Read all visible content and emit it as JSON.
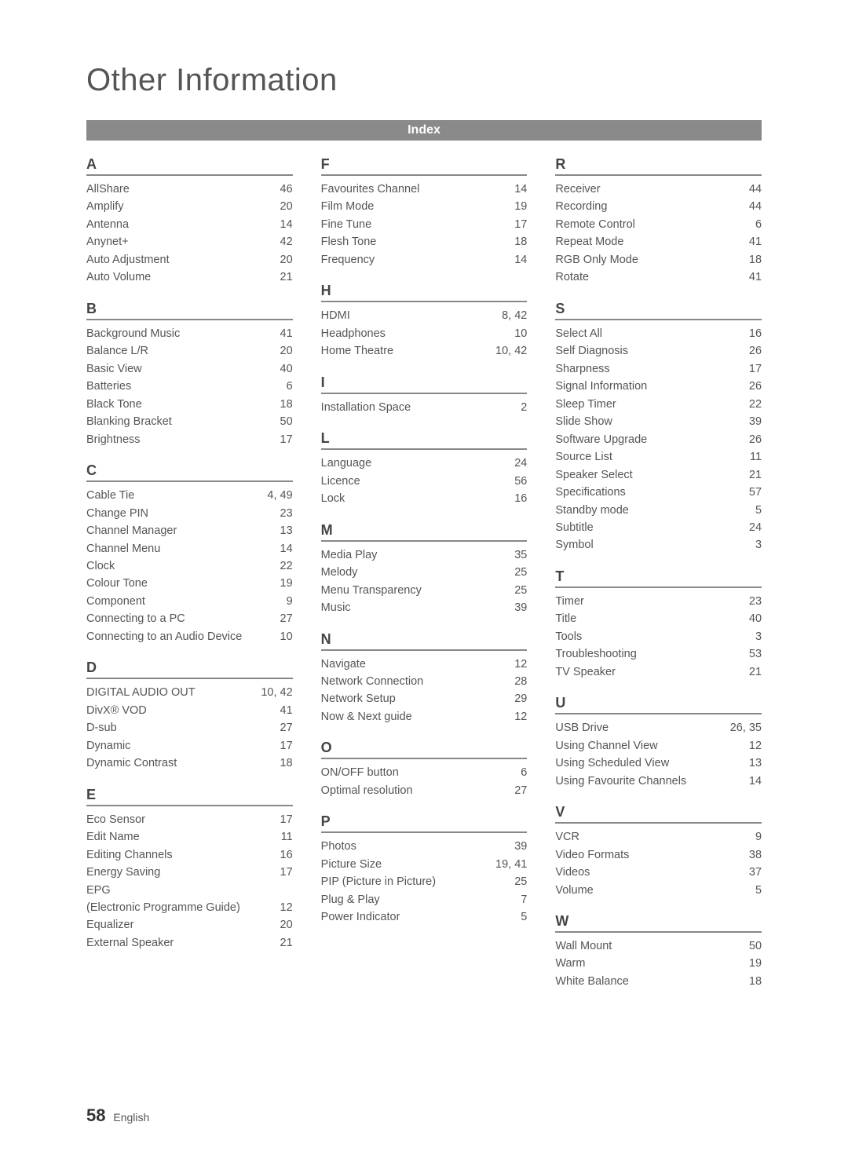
{
  "page_title": "Other Information",
  "index_label": "Index",
  "footer": {
    "number": "58",
    "lang": "English"
  },
  "columns": [
    [
      {
        "letter": "A",
        "entries": [
          {
            "term": "AllShare",
            "page": "46"
          },
          {
            "term": "Amplify",
            "page": "20"
          },
          {
            "term": "Antenna",
            "page": "14"
          },
          {
            "term": "Anynet+",
            "page": "42"
          },
          {
            "term": "Auto Adjustment",
            "page": "20"
          },
          {
            "term": "Auto Volume",
            "page": "21"
          }
        ]
      },
      {
        "letter": "B",
        "entries": [
          {
            "term": "Background Music",
            "page": "41"
          },
          {
            "term": "Balance  L/R",
            "page": "20"
          },
          {
            "term": "Basic View",
            "page": "40"
          },
          {
            "term": "Batteries",
            "page": "6"
          },
          {
            "term": "Black Tone",
            "page": "18"
          },
          {
            "term": "Blanking Bracket",
            "page": "50"
          },
          {
            "term": "Brightness",
            "page": "17"
          }
        ]
      },
      {
        "letter": "C",
        "entries": [
          {
            "term": "Cable Tie",
            "page": "4, 49"
          },
          {
            "term": "Change PIN",
            "page": "23"
          },
          {
            "term": "Channel Manager",
            "page": "13"
          },
          {
            "term": "Channel Menu",
            "page": "14"
          },
          {
            "term": "Clock",
            "page": "22"
          },
          {
            "term": "Colour Tone",
            "page": "19"
          },
          {
            "term": "Component",
            "page": "9"
          },
          {
            "term": "Connecting to a PC",
            "page": "27"
          },
          {
            "term": "Connecting to an Audio Device",
            "page": "10"
          }
        ]
      },
      {
        "letter": "D",
        "entries": [
          {
            "term": "DIGITAL AUDIO OUT",
            "page": "10, 42"
          },
          {
            "term": "DivX® VOD",
            "page": "41"
          },
          {
            "term": "D-sub",
            "page": "27"
          },
          {
            "term": "Dynamic",
            "page": "17"
          },
          {
            "term": "Dynamic Contrast",
            "page": "18"
          }
        ]
      },
      {
        "letter": "E",
        "entries": [
          {
            "term": "Eco Sensor",
            "page": "17"
          },
          {
            "term": "Edit Name",
            "page": "11"
          },
          {
            "term": "Editing Channels",
            "page": "16"
          },
          {
            "term": "Energy Saving",
            "page": "17"
          },
          {
            "term": "EPG",
            "page": ""
          },
          {
            "term": "(Electronic Programme Guide)",
            "page": "12"
          },
          {
            "term": "Equalizer",
            "page": "20"
          },
          {
            "term": "External Speaker",
            "page": "21"
          }
        ]
      }
    ],
    [
      {
        "letter": "F",
        "entries": [
          {
            "term": "Favourites Channel",
            "page": "14"
          },
          {
            "term": "Film Mode",
            "page": "19"
          },
          {
            "term": "Fine Tune",
            "page": "17"
          },
          {
            "term": "Flesh Tone",
            "page": "18"
          },
          {
            "term": "Frequency",
            "page": "14"
          }
        ]
      },
      {
        "letter": "H",
        "entries": [
          {
            "term": "HDMI",
            "page": "8, 42"
          },
          {
            "term": "Headphones",
            "page": "10"
          },
          {
            "term": "Home Theatre",
            "page": "10, 42"
          }
        ]
      },
      {
        "letter": "I",
        "entries": [
          {
            "term": "Installation Space",
            "page": "2"
          }
        ]
      },
      {
        "letter": "L",
        "entries": [
          {
            "term": "Language",
            "page": "24"
          },
          {
            "term": "Licence",
            "page": "56"
          },
          {
            "term": "Lock",
            "page": "16"
          }
        ]
      },
      {
        "letter": "M",
        "entries": [
          {
            "term": "Media Play",
            "page": "35"
          },
          {
            "term": "Melody",
            "page": "25"
          },
          {
            "term": "Menu Transparency",
            "page": "25"
          },
          {
            "term": "Music",
            "page": "39"
          }
        ]
      },
      {
        "letter": "N",
        "entries": [
          {
            "term": "Navigate",
            "page": "12"
          },
          {
            "term": "Network Connection",
            "page": "28"
          },
          {
            "term": "Network Setup",
            "page": "29"
          },
          {
            "term": "Now & Next guide",
            "page": "12"
          }
        ]
      },
      {
        "letter": "O",
        "entries": [
          {
            "term": "ON/OFF button",
            "page": "6"
          },
          {
            "term": "Optimal resolution",
            "page": "27"
          }
        ]
      },
      {
        "letter": "P",
        "entries": [
          {
            "term": "Photos",
            "page": "39"
          },
          {
            "term": "Picture Size",
            "page": "19, 41"
          },
          {
            "term": "PIP (Picture in Picture)",
            "page": "25"
          },
          {
            "term": "Plug & Play",
            "page": "7"
          },
          {
            "term": "Power Indicator",
            "page": "5"
          }
        ]
      }
    ],
    [
      {
        "letter": "R",
        "entries": [
          {
            "term": "Receiver",
            "page": "44"
          },
          {
            "term": "Recording",
            "page": "44"
          },
          {
            "term": "Remote Control",
            "page": "6"
          },
          {
            "term": "Repeat Mode",
            "page": "41"
          },
          {
            "term": "RGB Only Mode",
            "page": "18"
          },
          {
            "term": "Rotate",
            "page": "41"
          }
        ]
      },
      {
        "letter": "S",
        "entries": [
          {
            "term": "Select All",
            "page": "16"
          },
          {
            "term": "Self Diagnosis",
            "page": "26"
          },
          {
            "term": "Sharpness",
            "page": "17"
          },
          {
            "term": "Signal Information",
            "page": "26"
          },
          {
            "term": "Sleep Timer",
            "page": "22"
          },
          {
            "term": "Slide Show",
            "page": "39"
          },
          {
            "term": "Software Upgrade",
            "page": "26"
          },
          {
            "term": "Source List",
            "page": "11"
          },
          {
            "term": "Speaker Select",
            "page": "21"
          },
          {
            "term": "Specifications",
            "page": "57"
          },
          {
            "term": "Standby mode",
            "page": "5"
          },
          {
            "term": "Subtitle",
            "page": "24"
          },
          {
            "term": "Symbol",
            "page": "3"
          }
        ]
      },
      {
        "letter": "T",
        "entries": [
          {
            "term": "Timer",
            "page": "23"
          },
          {
            "term": "Title",
            "page": "40"
          },
          {
            "term": "Tools",
            "page": "3"
          },
          {
            "term": "Troubleshooting",
            "page": "53"
          },
          {
            "term": "TV Speaker",
            "page": "21"
          }
        ]
      },
      {
        "letter": "U",
        "entries": [
          {
            "term": "USB Drive",
            "page": "26, 35"
          },
          {
            "term": "Using Channel View",
            "page": "12"
          },
          {
            "term": "Using Scheduled View",
            "page": "13"
          },
          {
            "term": "Using Favourite Channels",
            "page": "14"
          }
        ]
      },
      {
        "letter": "V",
        "entries": [
          {
            "term": "VCR",
            "page": "9"
          },
          {
            "term": "Video Formats",
            "page": "38"
          },
          {
            "term": "Videos",
            "page": "37"
          },
          {
            "term": "Volume",
            "page": "5"
          }
        ]
      },
      {
        "letter": "W",
        "entries": [
          {
            "term": "Wall Mount",
            "page": "50"
          },
          {
            "term": "Warm",
            "page": "19"
          },
          {
            "term": "White Balance",
            "page": "18"
          }
        ]
      }
    ]
  ]
}
